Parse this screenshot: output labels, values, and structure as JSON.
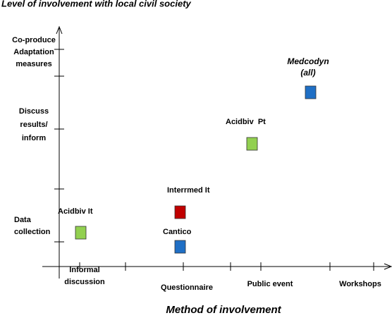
{
  "title": "Level of involvement with local civil society",
  "y_axis": {
    "levels": [
      {
        "lines": [
          "Co-produce",
          "Adaptation",
          "measures"
        ]
      },
      {
        "lines": [
          "Discuss",
          "results/",
          "inform"
        ]
      },
      {
        "lines": [
          "Data",
          "collection"
        ]
      }
    ]
  },
  "x_axis": {
    "title": "Method of involvement",
    "categories": [
      {
        "lines": [
          "Informal",
          "discussion"
        ]
      },
      {
        "lines": [
          "Questionnaire"
        ]
      },
      {
        "lines": [
          "Public event"
        ]
      },
      {
        "lines": [
          "Workshops"
        ]
      }
    ]
  },
  "projects": [
    {
      "lines": [
        "Acidbiv It"
      ],
      "color": "#92d050"
    },
    {
      "lines": [
        "Interrmed It"
      ],
      "color": "#c00000"
    },
    {
      "lines": [
        "Cantico"
      ],
      "color": "#1f6fc5"
    },
    {
      "lines": [
        "Acidbiv  Pt"
      ],
      "color": "#92d050"
    },
    {
      "lines": [
        "Medcodyn",
        "(all)"
      ],
      "color": "#1f6fc5"
    }
  ]
}
